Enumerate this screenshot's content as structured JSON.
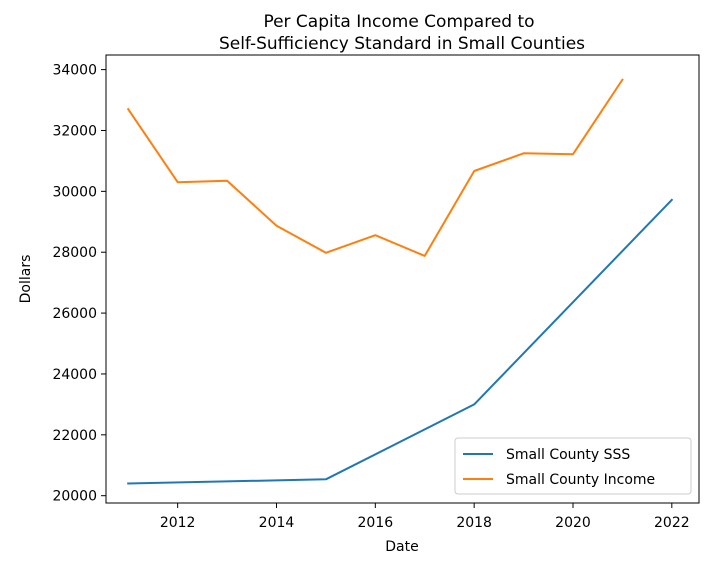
{
  "chart_data": {
    "type": "line",
    "title_lines": [
      "Per Capita Income Compared to",
      "Self-Sufficiency Standard in Small Counties"
    ],
    "xlabel": "Date",
    "ylabel": "Dollars",
    "xlim": [
      2010.55,
      2022.55
    ],
    "ylim": [
      19760,
      34480
    ],
    "xticks": [
      2012,
      2014,
      2016,
      2018,
      2020,
      2022
    ],
    "yticks": [
      20000,
      22000,
      24000,
      26000,
      28000,
      30000,
      32000,
      34000
    ],
    "legend_position": "lower-right",
    "series": [
      {
        "name": "Small County SSS",
        "color": "#1f77b4",
        "x": [
          2011,
          2015,
          2018,
          2022
        ],
        "y": [
          20400,
          20540,
          23000,
          29720
        ]
      },
      {
        "name": "Small County Income",
        "color": "#ff7f0e",
        "x": [
          2011,
          2012,
          2013,
          2014,
          2015,
          2016,
          2017,
          2018,
          2019,
          2020,
          2021
        ],
        "y": [
          32700,
          30300,
          30350,
          28870,
          27980,
          28560,
          27880,
          30670,
          31250,
          31220,
          33670
        ]
      }
    ]
  }
}
